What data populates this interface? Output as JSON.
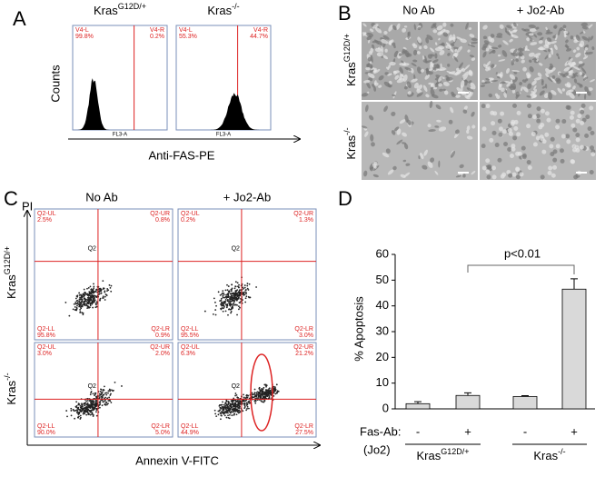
{
  "panel_A": {
    "label": "A",
    "y_label": "Counts",
    "x_label": "Anti-FAS-PE",
    "plots": [
      {
        "title": {
          "base": "Kras",
          "sup": "G12D/+"
        },
        "left_gate": "V4-L",
        "left_pct": "99.8%",
        "right_gate": "V4-R",
        "right_pct": "0.2%",
        "x_axis": "FL3-A"
      },
      {
        "title": {
          "base": "Kras",
          "sup": "-/-"
        },
        "left_gate": "V4-L",
        "left_pct": "55.3%",
        "right_gate": "V4-R",
        "right_pct": "44.7%",
        "x_axis": "FL3-A"
      }
    ]
  },
  "panel_B": {
    "label": "B",
    "columns": [
      "No Ab",
      "+ Jo2-Ab"
    ],
    "rows": [
      {
        "base": "Kras",
        "sup": "G12D/+"
      },
      {
        "base": "Kras",
        "sup": "-/-"
      }
    ]
  },
  "panel_C": {
    "label": "C",
    "columns": [
      "No Ab",
      "+ Jo2-Ab"
    ],
    "rows": [
      {
        "base": "Kras",
        "sup": "G12D/+"
      },
      {
        "base": "Kras",
        "sup": "-/-"
      }
    ],
    "y_label": "PI",
    "x_label": "Annexin V-FITC",
    "plots": [
      {
        "ul": "Q2-UL",
        "ul_pct": "2.5%",
        "ur": "Q2-UR",
        "ur_pct": "0.8%",
        "ll": "Q2-LL",
        "ll_pct": "95.8%",
        "lr": "Q2-LR",
        "lr_pct": "0.9%",
        "center": "Q2"
      },
      {
        "ul": "Q2-UL",
        "ul_pct": "0.2%",
        "ur": "Q2-UR",
        "ur_pct": "1.3%",
        "ll": "Q2-LL",
        "ll_pct": "95.5%",
        "lr": "Q2-LR",
        "lr_pct": "3.0%",
        "center": "Q2"
      },
      {
        "ul": "Q2-UL",
        "ul_pct": "3.0%",
        "ur": "Q2-UR",
        "ur_pct": "2.0%",
        "ll": "Q2-LL",
        "ll_pct": "90.0%",
        "lr": "Q2-LR",
        "lr_pct": "5.0%",
        "center": "Q2"
      },
      {
        "ul": "Q2-UL",
        "ul_pct": "6.3%",
        "ur": "Q2-UR",
        "ur_pct": "21.2%",
        "ll": "Q2-LL",
        "ll_pct": "44.9%",
        "lr": "Q2-LR",
        "lr_pct": "27.5%",
        "center": "Q2"
      }
    ]
  },
  "chart_data": {
    "type": "bar",
    "panel_label": "D",
    "ylabel": "% Apoptosis",
    "categories": [
      "-",
      "+",
      "-",
      "+"
    ],
    "values": [
      2,
      5.2,
      4.8,
      46.5
    ],
    "errors": [
      0.8,
      1.0,
      0.3,
      4
    ],
    "color": "#d9d9d9",
    "ylim": [
      0,
      60
    ],
    "yticks": [
      0,
      10,
      20,
      30,
      40,
      50,
      60
    ],
    "row_label": "Fas-Ab:",
    "row_sublabel": "(Jo2)",
    "groups": [
      {
        "base": "Kras",
        "sup": "G12D/+"
      },
      {
        "base": "Kras",
        "sup": "-/-"
      }
    ],
    "annotation": "p<0.01"
  }
}
